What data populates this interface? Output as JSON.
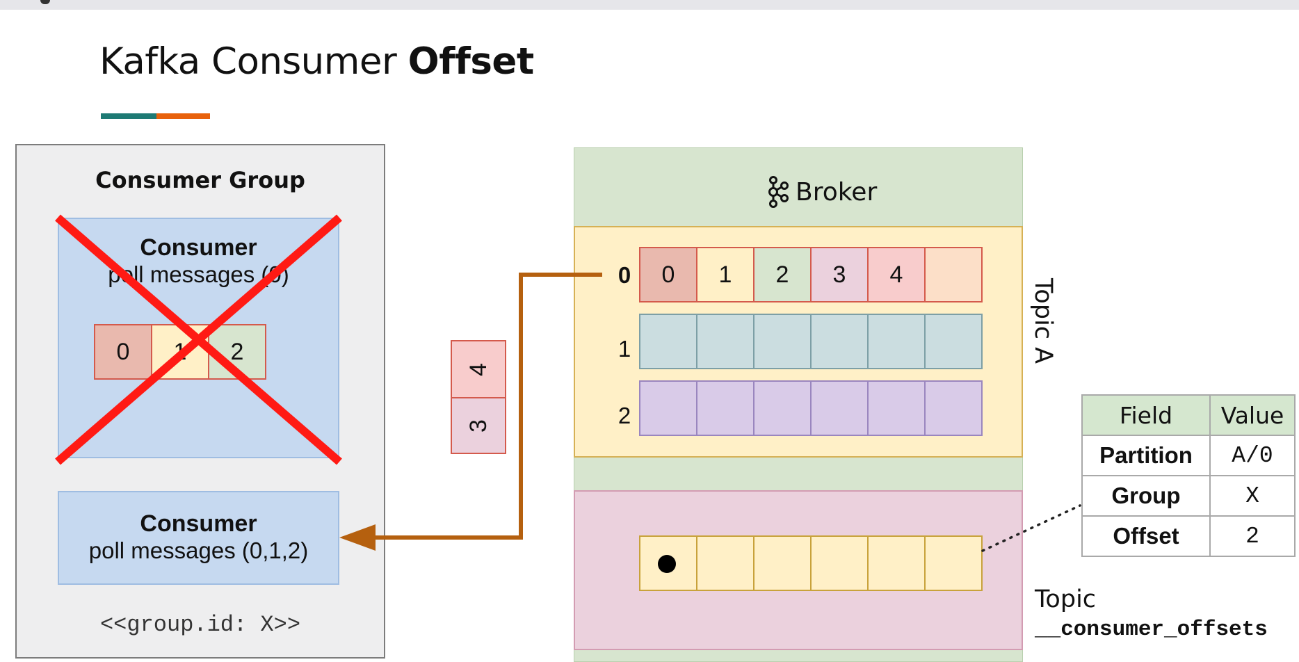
{
  "title": {
    "prefix": "Kafka Consumer",
    "bold": "Offset"
  },
  "consumer_group": {
    "title": "Consumer Group",
    "crossed_consumer": {
      "name": "Consumer",
      "poll": "poll messages (0)",
      "messages": [
        "0",
        "1",
        "2"
      ]
    },
    "active_consumer": {
      "name": "Consumer",
      "poll": "poll messages (0,1,2)"
    },
    "group_id": "<<group.id: X>>"
  },
  "in_flight": [
    "4",
    "3"
  ],
  "broker": {
    "label": "Broker",
    "topic_a": {
      "label": "Topic A",
      "partitions": [
        {
          "index": "0",
          "messages": [
            "0",
            "1",
            "2",
            "3",
            "4",
            ""
          ]
        },
        {
          "index": "1",
          "messages": [
            "",
            "",
            "",
            "",
            "",
            ""
          ]
        },
        {
          "index": "2",
          "messages": [
            "",
            "",
            "",
            "",
            "",
            ""
          ]
        }
      ]
    },
    "offsets_topic": {
      "label": "Topic",
      "name": "__consumer_offsets"
    }
  },
  "offset_table": {
    "headers": [
      "Field",
      "Value"
    ],
    "rows": [
      {
        "field": "Partition",
        "value": "A/0"
      },
      {
        "field": "Group",
        "value": "X"
      },
      {
        "field": "Offset",
        "value": "2"
      }
    ]
  },
  "colors": {
    "accent_teal": "#1e7a74",
    "accent_orange": "#e8620c",
    "arrow": "#b5600f",
    "cross": "#ff1a14"
  }
}
